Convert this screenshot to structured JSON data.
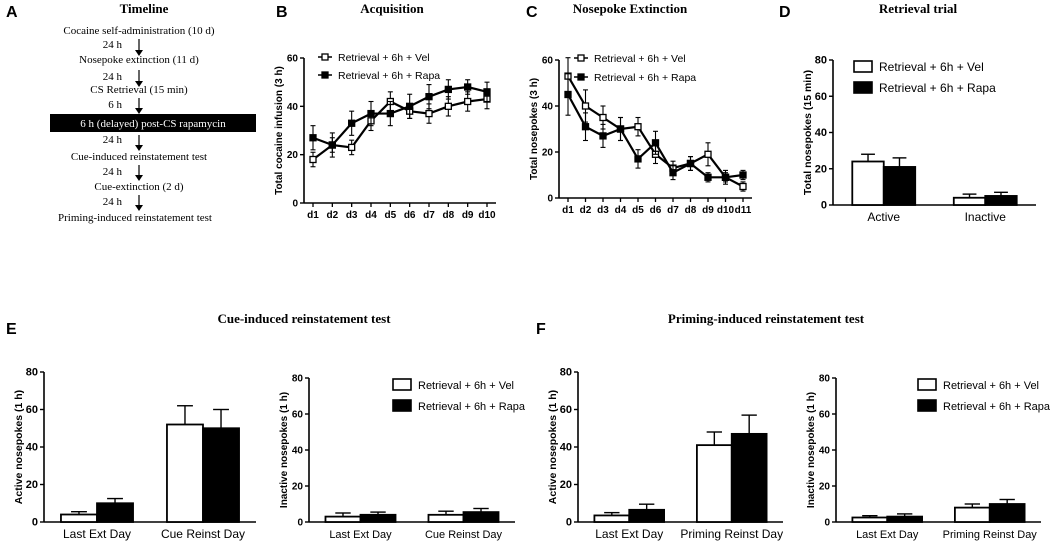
{
  "panels": {
    "A": {
      "letter": "A",
      "title": "Timeline",
      "steps": [
        "Cocaine self-administration (10 d)",
        "24 h",
        "Nosepoke extinction (11 d)",
        "24 h",
        "CS Retrieval (15 min)",
        "6 h",
        "6 h (delayed) post-CS rapamycin",
        "24 h",
        "Cue-induced reinstatement test",
        "24 h",
        "Cue-extinction (2 d)",
        "24 h",
        "Priming-induced reinstatement test"
      ]
    },
    "E": {
      "letter": "E",
      "title": "Cue-induced reinstatement test"
    },
    "F": {
      "letter": "F",
      "title": "Priming-induced reinstatement test"
    }
  },
  "colors": {
    "vel": "#ffffff",
    "rapa": "#000000",
    "axis": "#000000"
  },
  "legend": {
    "vel": "Retrieval + 6h + Vel",
    "rapa": "Retrieval + 6h + Rapa"
  },
  "chart_data": [
    {
      "id": "B",
      "letter": "B",
      "type": "line",
      "title": "Acquisition",
      "ylabel": "Total cocaine infusion (3 h)",
      "xlabel": "",
      "categories": [
        "d1",
        "d2",
        "d3",
        "d4",
        "d5",
        "d6",
        "d7",
        "d8",
        "d9",
        "d10"
      ],
      "ylim": [
        0,
        60
      ],
      "yticks": [
        0,
        20,
        40,
        60
      ],
      "series": [
        {
          "name": "Retrieval + 6h + Vel",
          "values": [
            18,
            24,
            23,
            34,
            42,
            38,
            37,
            40,
            42,
            43
          ],
          "errors": [
            3,
            3,
            3,
            4,
            4,
            3,
            4,
            4,
            4,
            4
          ]
        },
        {
          "name": "Retrieval + 6h + Rapa",
          "values": [
            27,
            24,
            33,
            37,
            37,
            40,
            44,
            47,
            48,
            46
          ],
          "errors": [
            5,
            5,
            5,
            5,
            5,
            5,
            5,
            4,
            3,
            4
          ]
        }
      ]
    },
    {
      "id": "C",
      "letter": "C",
      "type": "line",
      "title": "Nosepoke Extinction",
      "ylabel": "Total nosepokes (3 h)",
      "xlabel": "",
      "categories": [
        "d1",
        "d2",
        "d3",
        "d4",
        "d5",
        "d6",
        "d7",
        "d8",
        "d9",
        "d10",
        "d11"
      ],
      "ylim": [
        0,
        60
      ],
      "yticks": [
        0,
        20,
        40,
        60
      ],
      "series": [
        {
          "name": "Retrieval + 6h + Vel",
          "values": [
            53,
            40,
            35,
            30,
            31,
            19,
            13,
            15,
            19,
            9,
            5
          ],
          "errors": [
            8,
            7,
            5,
            5,
            4,
            4,
            3,
            3,
            5,
            3,
            2
          ]
        },
        {
          "name": "Retrieval + 6h + Rapa",
          "values": [
            45,
            31,
            27,
            30,
            17,
            24,
            11,
            15,
            9,
            9,
            10
          ],
          "errors": [
            9,
            6,
            5,
            5,
            4,
            5,
            3,
            3,
            2,
            2,
            2
          ]
        }
      ]
    },
    {
      "id": "D",
      "letter": "D",
      "type": "bar",
      "title": "Retrieval trial",
      "ylabel": "Total nosepokes (15 min)",
      "categories": [
        "Active",
        "Inactive"
      ],
      "ylim": [
        0,
        80
      ],
      "yticks": [
        0,
        20,
        40,
        60,
        80
      ],
      "series": [
        {
          "name": "Retrieval + 6h + Vel",
          "values": [
            24,
            4
          ],
          "errors": [
            4,
            2
          ]
        },
        {
          "name": "Retrieval + 6h + Rapa",
          "values": [
            21,
            5
          ],
          "errors": [
            5,
            2
          ]
        }
      ]
    },
    {
      "id": "E1",
      "type": "bar",
      "ylabel": "Active nosepokes (1 h)",
      "categories": [
        "Last Ext Day",
        "Cue Reinst Day"
      ],
      "ylim": [
        0,
        80
      ],
      "yticks": [
        0,
        20,
        40,
        60,
        80
      ],
      "series": [
        {
          "name": "Retrieval + 6h + Vel",
          "values": [
            4,
            52
          ],
          "errors": [
            1.5,
            10
          ]
        },
        {
          "name": "Retrieval + 6h + Rapa",
          "values": [
            10,
            50
          ],
          "errors": [
            2.5,
            10
          ]
        }
      ]
    },
    {
      "id": "E2",
      "type": "bar",
      "ylabel": "Inactive nosepokes (1 h)",
      "categories": [
        "Last Ext Day",
        "Cue Reinst Day"
      ],
      "ylim": [
        0,
        80
      ],
      "yticks": [
        0,
        20,
        40,
        60,
        80
      ],
      "series": [
        {
          "name": "Retrieval + 6h + Vel",
          "values": [
            3,
            4
          ],
          "errors": [
            2,
            2
          ]
        },
        {
          "name": "Retrieval + 6h + Rapa",
          "values": [
            4,
            5.5
          ],
          "errors": [
            1.5,
            2
          ]
        }
      ]
    },
    {
      "id": "F1",
      "type": "bar",
      "ylabel": "Active nosepokes (1 h)",
      "categories": [
        "Last Ext Day",
        "Priming Reinst Day"
      ],
      "ylim": [
        0,
        80
      ],
      "yticks": [
        0,
        20,
        40,
        60,
        80
      ],
      "series": [
        {
          "name": "Retrieval + 6h + Vel",
          "values": [
            3.5,
            41
          ],
          "errors": [
            1.5,
            7
          ]
        },
        {
          "name": "Retrieval + 6h + Rapa",
          "values": [
            6.5,
            47
          ],
          "errors": [
            3,
            10
          ]
        }
      ]
    },
    {
      "id": "F2",
      "type": "bar",
      "ylabel": "Inactive nosepokes (1 h)",
      "categories": [
        "Last Ext Day",
        "Priming Reinst Day"
      ],
      "ylim": [
        0,
        80
      ],
      "yticks": [
        0,
        20,
        40,
        60,
        80
      ],
      "series": [
        {
          "name": "Retrieval + 6h + Vel",
          "values": [
            2.5,
            8
          ],
          "errors": [
            1,
            2
          ]
        },
        {
          "name": "Retrieval + 6h + Rapa",
          "values": [
            3,
            10
          ],
          "errors": [
            1.5,
            2.5
          ]
        }
      ]
    }
  ]
}
